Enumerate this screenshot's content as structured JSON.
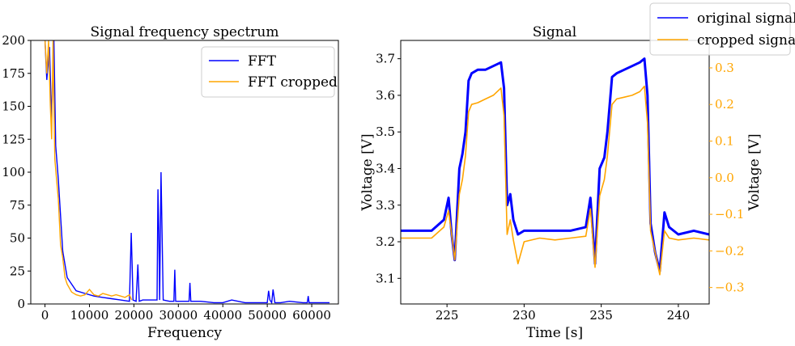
{
  "chart_data": [
    {
      "type": "line",
      "title": "Signal frequency spectrum",
      "xlabel": "Frequency",
      "ylabel": "",
      "xlim": [
        -3200,
        66000
      ],
      "ylim": [
        0,
        200
      ],
      "xticks": [
        0,
        10000,
        20000,
        30000,
        40000,
        50000,
        60000
      ],
      "yticks": [
        0,
        25,
        50,
        75,
        100,
        125,
        150,
        175,
        200
      ],
      "legend_position": "upper right",
      "grid": false,
      "series": [
        {
          "name": "FFT",
          "color": "#0000ff",
          "x": [
            0,
            400,
            1000,
            1500,
            2000,
            2400,
            3000,
            4000,
            5000,
            7000,
            9000,
            11000,
            13000,
            15000,
            17000,
            19000,
            19400,
            19600,
            19800,
            20500,
            20900,
            21200,
            22000,
            24000,
            25200,
            25400,
            25600,
            25800,
            26100,
            26300,
            26600,
            28000,
            29000,
            29200,
            29400,
            31000,
            32400,
            32600,
            32800,
            35000,
            38000,
            40000,
            42000,
            45000,
            48000,
            50000,
            50300,
            50600,
            51000,
            51300,
            51700,
            53000,
            55000,
            58000,
            59000,
            59200,
            59400,
            61000,
            64000
          ],
          "y": [
            200,
            170,
            195,
            140,
            200,
            120,
            95,
            40,
            20,
            10,
            8,
            6,
            5,
            4,
            3,
            2,
            54,
            30,
            3,
            2,
            30,
            2,
            3,
            3,
            3,
            87,
            55,
            3,
            100,
            60,
            3,
            2,
            2,
            26,
            2,
            2,
            2,
            16,
            2,
            2,
            1,
            1,
            3,
            1,
            1,
            1,
            10,
            3,
            1,
            11,
            1,
            1,
            2,
            1,
            1,
            6,
            1,
            1,
            1
          ]
        },
        {
          "name": "FFT cropped",
          "color": "#ffa500",
          "x": [
            0,
            400,
            800,
            1200,
            1500,
            1800,
            2200,
            2600,
            3000,
            3500,
            4000,
            4500,
            5000,
            6000,
            7000,
            8000,
            9000,
            10000,
            11000,
            12000,
            13000,
            14000,
            15000,
            16000,
            17000,
            18000,
            19000,
            19500
          ],
          "y": [
            200,
            175,
            200,
            150,
            125,
            200,
            110,
            95,
            80,
            45,
            35,
            20,
            15,
            9,
            7,
            6,
            7,
            11,
            7,
            6,
            8,
            7,
            6,
            7,
            6,
            5,
            7,
            3
          ]
        }
      ]
    },
    {
      "type": "line",
      "title": "Signal",
      "xlabel": "Time [s]",
      "ylabel": "Voltage [V]",
      "ylabel_right": "Voltage [V]",
      "xlim": [
        222,
        242
      ],
      "ylim": [
        3.03,
        3.75
      ],
      "ylim_right": [
        -0.345,
        0.375
      ],
      "xticks": [
        225,
        230,
        235,
        240
      ],
      "yticks": [
        3.1,
        3.2,
        3.3,
        3.4,
        3.5,
        3.6,
        3.7
      ],
      "yticks_right": [
        -0.3,
        -0.2,
        -0.1,
        0.0,
        0.1,
        0.2,
        0.3
      ],
      "right_axis_color": "#ffa500",
      "legend_position": "upper right, outside",
      "grid": false,
      "series": [
        {
          "name": "original signal",
          "color": "#0000ff",
          "axis": "left",
          "x": [
            222,
            224,
            224.8,
            225.1,
            225.3,
            225.5,
            225.8,
            226.0,
            226.2,
            226.4,
            226.6,
            227.0,
            227.5,
            228.0,
            228.5,
            228.7,
            228.9,
            229.1,
            229.3,
            229.6,
            230.0,
            231.0,
            232.0,
            233.0,
            234.0,
            234.3,
            234.6,
            234.9,
            235.2,
            235.4,
            235.7,
            236.0,
            236.5,
            237.0,
            237.5,
            237.8,
            238.0,
            238.2,
            238.5,
            238.8,
            239.1,
            239.4,
            240.0,
            241.0,
            242.0
          ],
          "y": [
            3.23,
            3.23,
            3.26,
            3.32,
            3.22,
            3.15,
            3.4,
            3.44,
            3.5,
            3.64,
            3.66,
            3.67,
            3.67,
            3.68,
            3.69,
            3.62,
            3.3,
            3.33,
            3.26,
            3.22,
            3.23,
            3.23,
            3.23,
            3.23,
            3.24,
            3.32,
            3.14,
            3.4,
            3.43,
            3.5,
            3.65,
            3.66,
            3.67,
            3.68,
            3.69,
            3.7,
            3.6,
            3.25,
            3.17,
            3.12,
            3.28,
            3.24,
            3.22,
            3.23,
            3.22
          ]
        },
        {
          "name": "cropped signal",
          "color": "#ffa500",
          "axis": "right",
          "x": [
            222,
            224,
            224.8,
            225.1,
            225.3,
            225.5,
            225.8,
            226.0,
            226.2,
            226.4,
            226.6,
            227.0,
            227.5,
            228.0,
            228.5,
            228.7,
            228.9,
            229.1,
            229.3,
            229.6,
            230.0,
            231.0,
            232.0,
            233.0,
            234.0,
            234.3,
            234.6,
            234.9,
            235.2,
            235.4,
            235.7,
            236.0,
            236.5,
            237.0,
            237.5,
            237.8,
            238.0,
            238.2,
            238.5,
            238.8,
            239.1,
            239.4,
            240.0,
            241.0,
            242.0
          ],
          "y": [
            -0.165,
            -0.165,
            -0.135,
            -0.09,
            -0.155,
            -0.225,
            -0.045,
            -0.005,
            0.06,
            0.18,
            0.2,
            0.205,
            0.215,
            0.225,
            0.245,
            0.17,
            -0.155,
            -0.115,
            -0.17,
            -0.235,
            -0.175,
            -0.165,
            -0.17,
            -0.165,
            -0.16,
            -0.085,
            -0.245,
            -0.05,
            -0.005,
            0.06,
            0.2,
            0.215,
            0.22,
            0.225,
            0.235,
            0.25,
            0.15,
            -0.145,
            -0.205,
            -0.265,
            -0.145,
            -0.165,
            -0.17,
            -0.165,
            -0.17
          ]
        }
      ]
    }
  ]
}
